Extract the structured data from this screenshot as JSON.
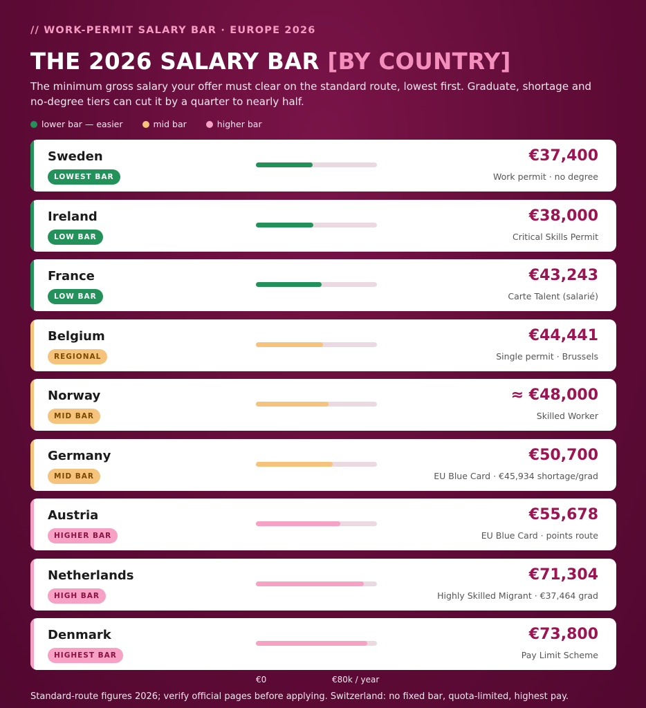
{
  "kicker": "// WORK-PERMIT SALARY BAR · EUROPE 2026",
  "title": {
    "main": "THE 2026 SALARY BAR ",
    "accent": "[BY COUNTRY]"
  },
  "subtitle": "The minimum gross salary your offer must clear on the standard route, lowest first. Graduate, shortage and no-degree tiers can cut it by a quarter to nearly half.",
  "legend": [
    {
      "label": "lower bar — easier",
      "color": "#23915a"
    },
    {
      "label": "mid bar",
      "color": "#f6c37d"
    },
    {
      "label": "higher bar",
      "color": "#f7a1c5"
    }
  ],
  "colors": {
    "green": "#23915a",
    "amber": "#f6c37d",
    "pink": "#f7a1c5",
    "badge_green_bg": "#23915a",
    "badge_green_fg": "#ffffff",
    "badge_amber_bg": "#f6c37d",
    "badge_amber_fg": "#7a4a00",
    "badge_pink_bg": "#f7a1c5",
    "badge_pink_fg": "#8a1242"
  },
  "chart_data": {
    "type": "bar",
    "axis": {
      "min_label": "€0",
      "max_label": "€80k / year",
      "range": [
        0,
        80000
      ]
    },
    "rows": [
      {
        "country": "Sweden",
        "badge": "LOWEST BAR",
        "tier": "green",
        "value": 37400,
        "salary_label": "€37,400",
        "note": "Work permit · no degree"
      },
      {
        "country": "Ireland",
        "badge": "LOW BAR",
        "tier": "green",
        "value": 38000,
        "salary_label": "€38,000",
        "note": "Critical Skills Permit"
      },
      {
        "country": "France",
        "badge": "LOW BAR",
        "tier": "green",
        "value": 43243,
        "salary_label": "€43,243",
        "note": "Carte Talent (salarié)"
      },
      {
        "country": "Belgium",
        "badge": "REGIONAL",
        "tier": "amber",
        "value": 44441,
        "salary_label": "€44,441",
        "note": "Single permit · Brussels"
      },
      {
        "country": "Norway",
        "badge": "MID BAR",
        "tier": "amber",
        "value": 48000,
        "salary_label": "≈ €48,000",
        "note": "Skilled Worker"
      },
      {
        "country": "Germany",
        "badge": "MID BAR",
        "tier": "amber",
        "value": 50700,
        "salary_label": "€50,700",
        "note": "EU Blue Card · €45,934 shortage/grad"
      },
      {
        "country": "Austria",
        "badge": "HIGHER BAR",
        "tier": "pink",
        "value": 55678,
        "salary_label": "€55,678",
        "note": "EU Blue Card · points route"
      },
      {
        "country": "Netherlands",
        "badge": "HIGH BAR",
        "tier": "pink",
        "value": 71304,
        "salary_label": "€71,304",
        "note": "Highly Skilled Migrant · €37,464 grad"
      },
      {
        "country": "Denmark",
        "badge": "HIGHEST BAR",
        "tier": "pink",
        "value": 73800,
        "salary_label": "€73,800",
        "note": "Pay Limit Scheme"
      }
    ]
  },
  "footer": "Standard-route figures 2026; verify official pages before applying. Switzerland: no fixed bar, quota-limited, highest pay."
}
